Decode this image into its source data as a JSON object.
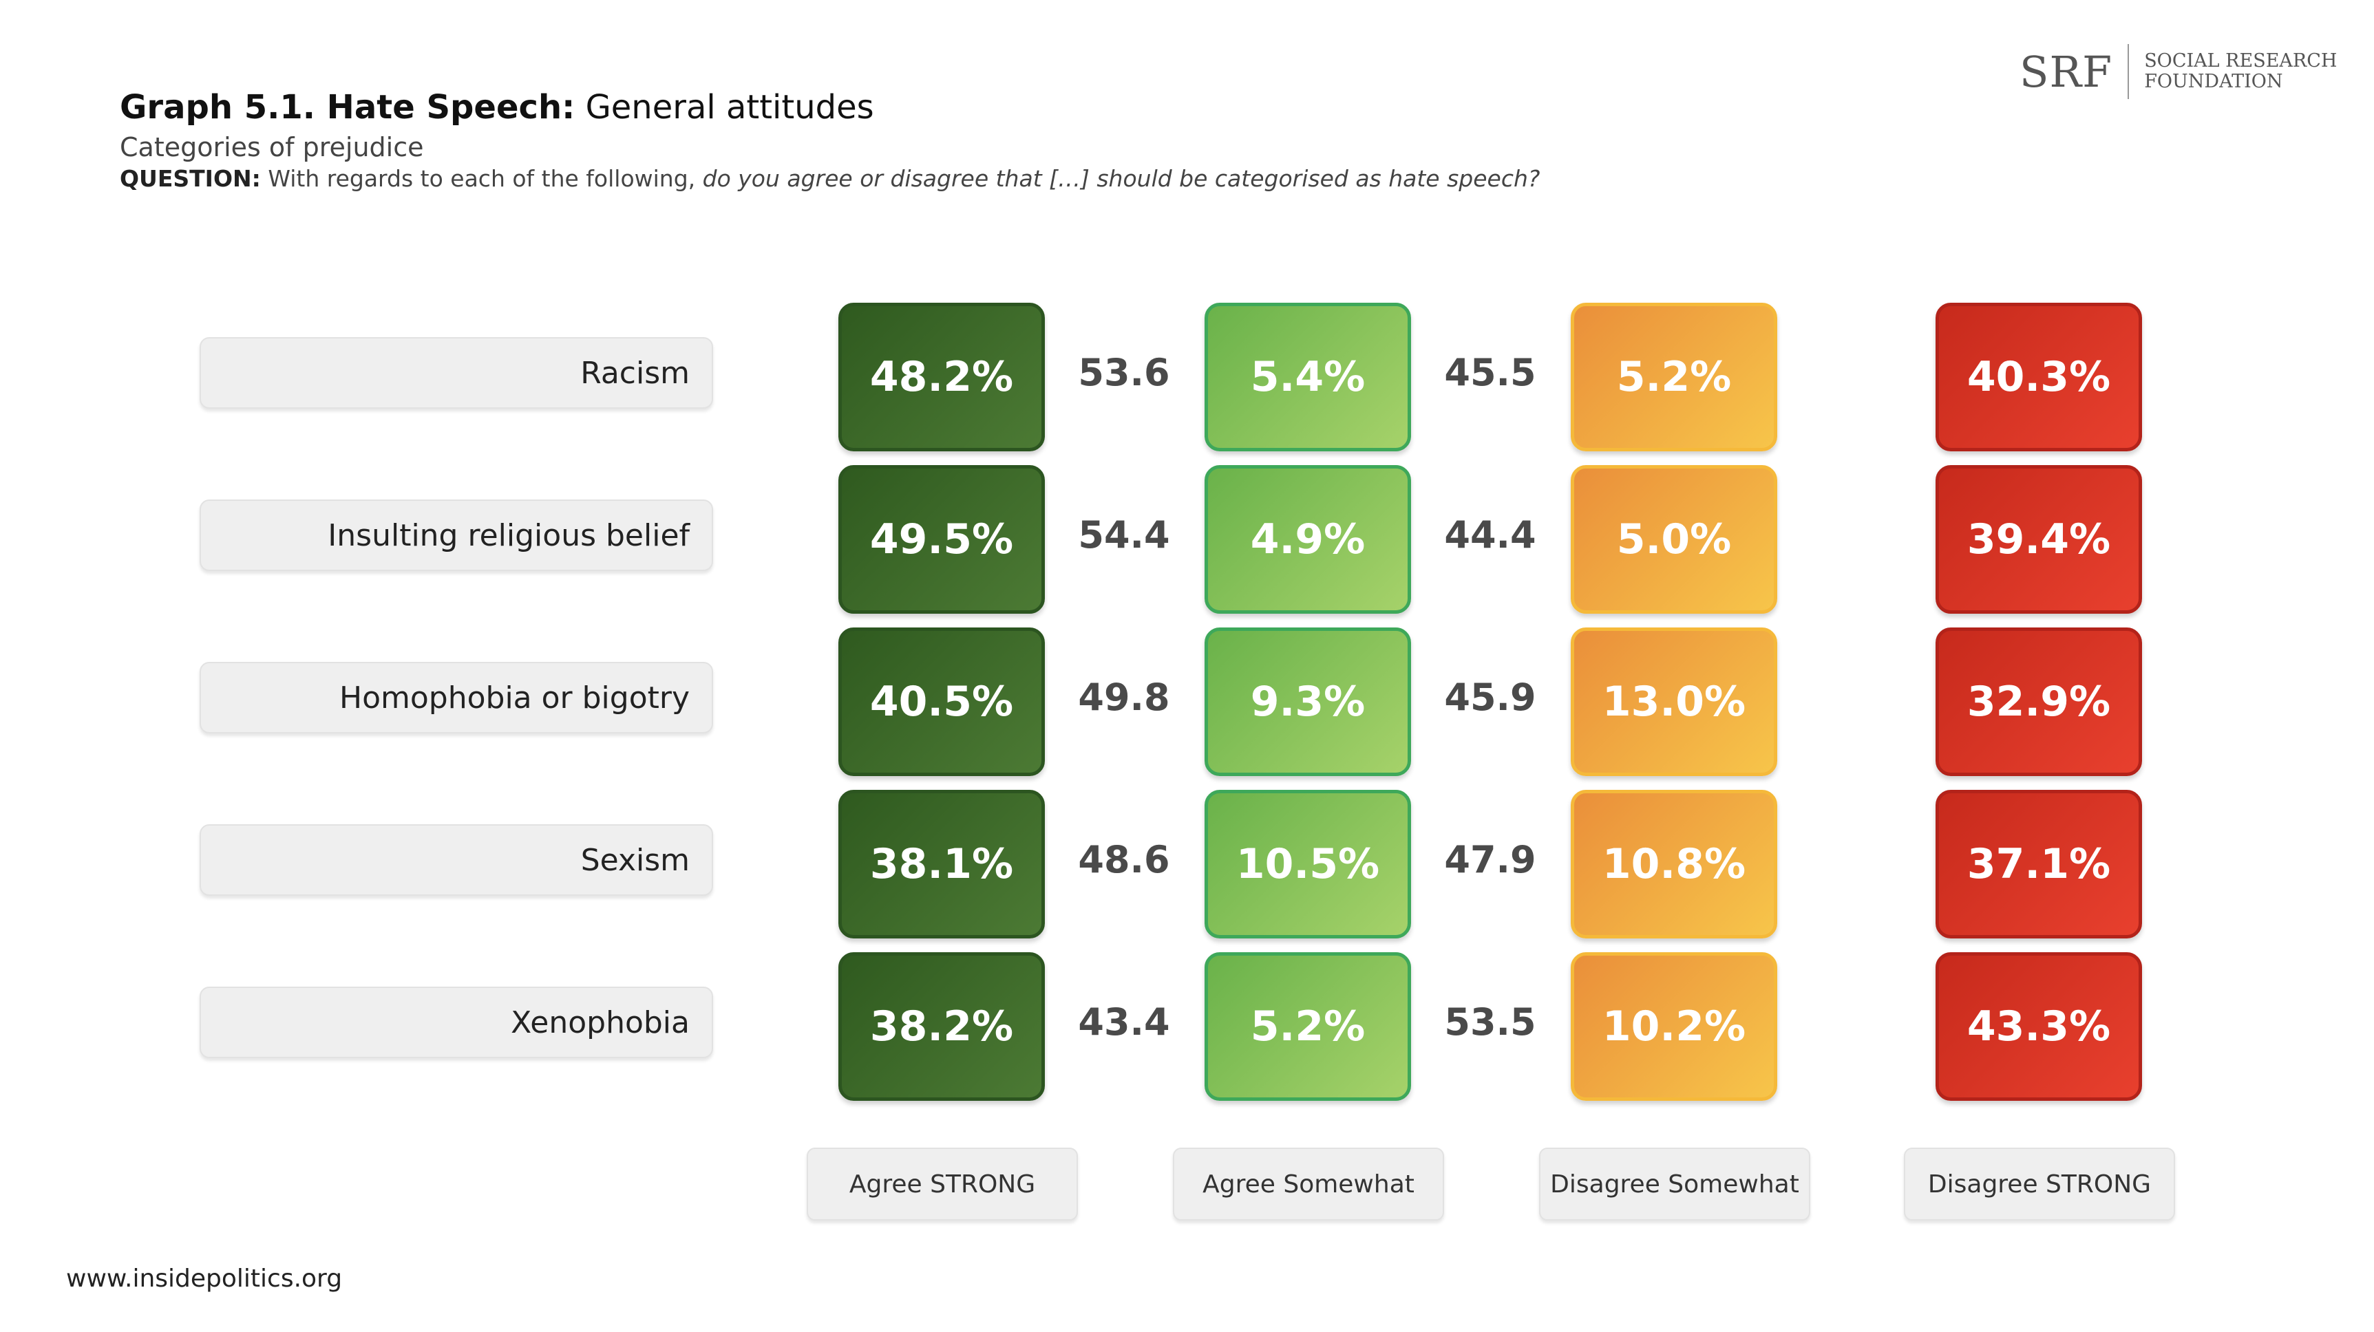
{
  "header": {
    "title_bold": "Graph 5.1. Hate Speech:",
    "title_rest": " General attitudes",
    "subtitle": "Categories of prejudice",
    "question_prefix": "QUESTION:",
    "question_text": " With regards to each of the following, ",
    "question_italic": "do you agree or disagree that […] should be categorised as hate speech?"
  },
  "logo": {
    "abbr": "SRF",
    "line1": "SOCIAL RESEARCH",
    "line2": "FOUNDATION"
  },
  "footer": {
    "url": "www.insidepolitics.org"
  },
  "colors": {
    "agree_strong": "#3d6b2a",
    "agree_somewhat": "#8cc45a",
    "disagree_somewhat": "#f3a744",
    "disagree_strong": "#d8321f",
    "net": "#4a4a4a"
  },
  "chart_data": {
    "type": "table",
    "title": "Graph 5.1. Hate Speech: General attitudes",
    "subtitle": "Categories of prejudice",
    "rows": [
      "Racism",
      "Insulting religious belief",
      "Homophobia or bigotry",
      "Sexism",
      "Xenophobia"
    ],
    "columns": [
      "Agree STRONG",
      "Agree Somewhat",
      "Disagree Somewhat",
      "Disagree STRONG"
    ],
    "series": [
      {
        "name": "Agree STRONG",
        "values": [
          "48.2%",
          "49.5%",
          "40.5%",
          "38.1%",
          "38.2%"
        ]
      },
      {
        "name": "Agree Somewhat",
        "values": [
          "5.4%",
          "4.9%",
          "9.3%",
          "10.5%",
          "5.2%"
        ]
      },
      {
        "name": "Disagree Somewhat",
        "values": [
          "5.2%",
          "5.0%",
          "13.0%",
          "10.8%",
          "10.2%"
        ]
      },
      {
        "name": "Disagree STRONG",
        "values": [
          "40.3%",
          "39.4%",
          "32.9%",
          "37.1%",
          "43.3%"
        ]
      }
    ],
    "net_agree": [
      "53.6",
      "54.4",
      "49.8",
      "48.6",
      "43.4"
    ],
    "net_disagree": [
      "45.5",
      "44.4",
      "45.9",
      "47.9",
      "53.5"
    ]
  }
}
